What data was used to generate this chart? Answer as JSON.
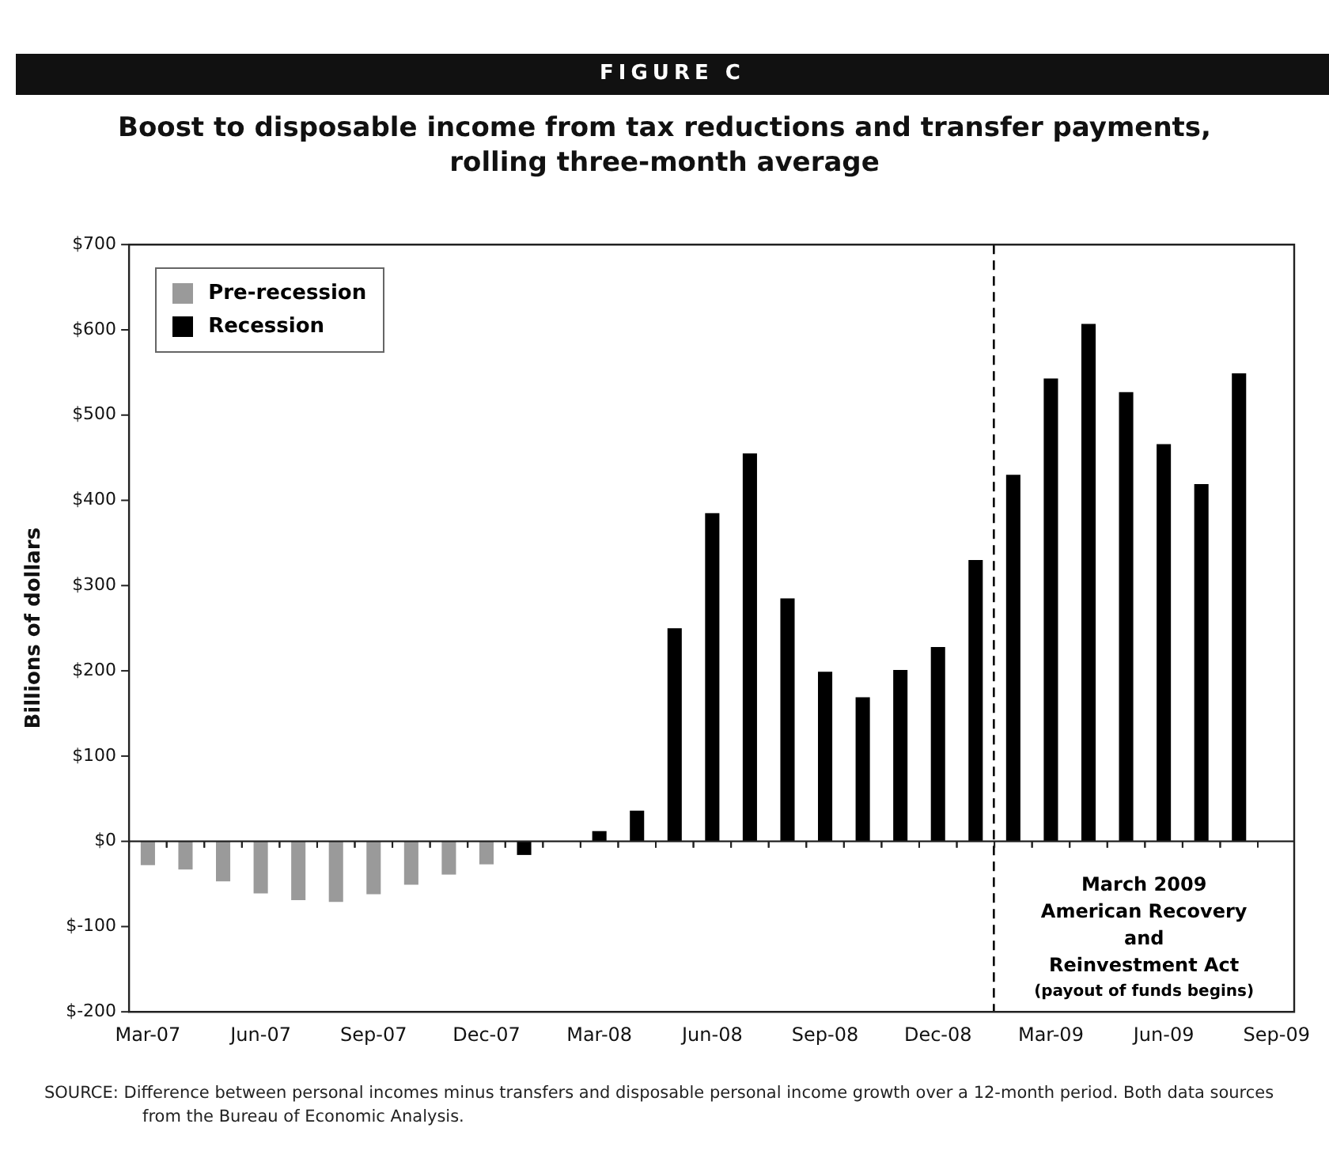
{
  "chart_data": {
    "type": "bar",
    "title": "Boost to disposable income from tax reductions and transfer payments, rolling three-month average",
    "ylabel": "Billions of dollars",
    "x": [
      "2007-03",
      "2007-04",
      "2007-05",
      "2007-06",
      "2007-07",
      "2007-08",
      "2007-09",
      "2007-10",
      "2007-11",
      "2007-12",
      "2008-01",
      "2008-02",
      "2008-03",
      "2008-04",
      "2008-05",
      "2008-06",
      "2008-07",
      "2008-08",
      "2008-09",
      "2008-10",
      "2008-11",
      "2008-12",
      "2009-01",
      "2009-02",
      "2009-03",
      "2009-04",
      "2009-05",
      "2009-06",
      "2009-07",
      "2009-08"
    ],
    "xlim": [
      "2007-02-15",
      "2009-09-15"
    ],
    "xticks": [
      {
        "value": "2007-03",
        "label": "Mar-07"
      },
      {
        "value": "2007-06",
        "label": "Jun-07"
      },
      {
        "value": "2007-09",
        "label": "Sep-07"
      },
      {
        "value": "2007-12",
        "label": "Dec-07"
      },
      {
        "value": "2008-03",
        "label": "Mar-08"
      },
      {
        "value": "2008-06",
        "label": "Jun-08"
      },
      {
        "value": "2008-09",
        "label": "Sep-08"
      },
      {
        "value": "2008-12",
        "label": "Dec-08"
      },
      {
        "value": "2009-03",
        "label": "Mar-09"
      },
      {
        "value": "2009-06",
        "label": "Jun-09"
      },
      {
        "value": "2009-09",
        "label": "Sep-09"
      }
    ],
    "series": [
      {
        "name": "Pre-recession",
        "color": "#9a9a9a",
        "values": [
          -28,
          -33,
          -47,
          -61,
          -69,
          -71,
          -62,
          -51,
          -39,
          -27,
          null,
          null,
          null,
          null,
          null,
          null,
          null,
          null,
          null,
          null,
          null,
          null,
          null,
          null,
          null,
          null,
          null,
          null,
          null,
          null
        ]
      },
      {
        "name": "Recession",
        "color": "#000000",
        "values": [
          null,
          null,
          null,
          null,
          null,
          null,
          null,
          null,
          null,
          null,
          -16,
          null,
          12,
          36,
          250,
          385,
          455,
          285,
          199,
          169,
          201,
          228,
          330,
          430,
          543,
          607,
          527,
          466,
          419,
          549
        ]
      }
    ],
    "ylim": [
      -200,
      700
    ],
    "yticks": [
      {
        "value": -200,
        "label": "$-200"
      },
      {
        "value": -100,
        "label": "$-100"
      },
      {
        "value": 0,
        "label": "$0"
      },
      {
        "value": 100,
        "label": "$100"
      },
      {
        "value": 200,
        "label": "$200"
      },
      {
        "value": 300,
        "label": "$300"
      },
      {
        "value": 400,
        "label": "$400"
      },
      {
        "value": 500,
        "label": "$500"
      },
      {
        "value": 600,
        "label": "$600"
      },
      {
        "value": 700,
        "label": "$700"
      }
    ],
    "ref_lines": [
      {
        "axis": "x",
        "value": "2009-01-16",
        "label": "March 2009\nAmerican Recovery\nand\nReinvestment Act",
        "line_style": "dashed",
        "color": "#000000"
      }
    ],
    "annotations": [
      "FIGURE C",
      "(payout of funds begins)",
      "SOURCE: Difference between personal incomes minus transfers and disposable personal income growth over a  12-month period. Both data sources from the Bureau of Economic Analysis."
    ],
    "legend": "top left"
  }
}
